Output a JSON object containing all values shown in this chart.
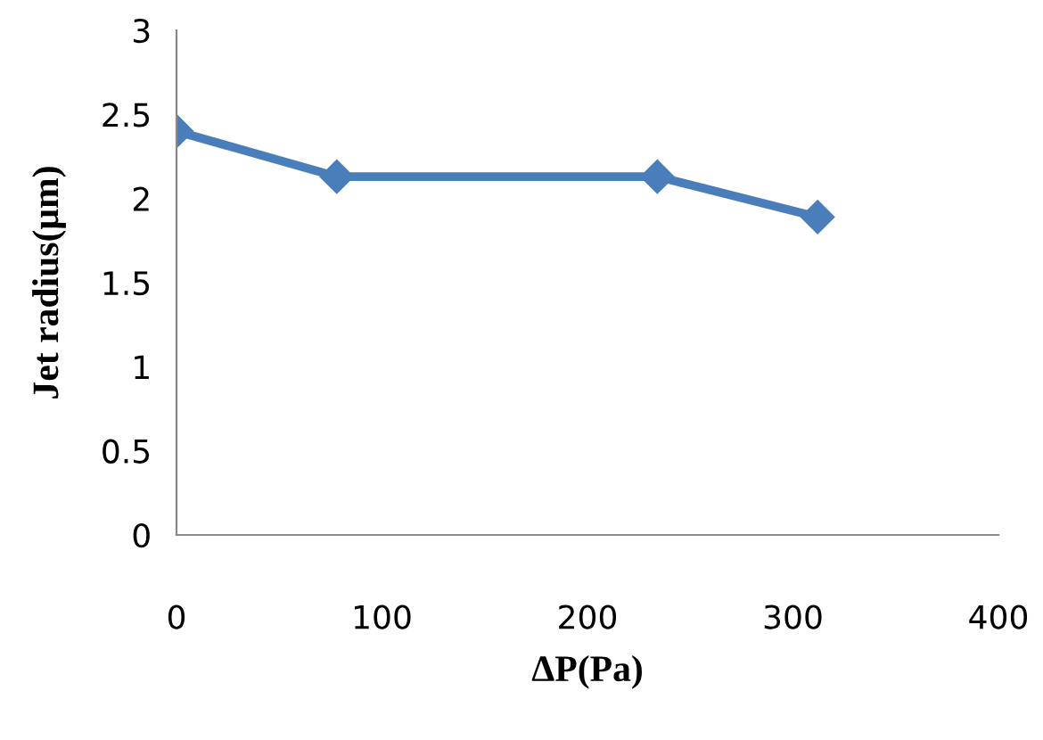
{
  "chart_data": {
    "type": "line",
    "xlabel": "ΔP(Pa)",
    "ylabel": "Jet radius(μm)",
    "x": [
      0,
      78,
      234,
      312
    ],
    "series": [
      {
        "color": "#4a7ebb",
        "values": [
          2.4,
          2.13,
          2.13,
          1.89
        ]
      }
    ],
    "xlim": [
      0,
      400
    ],
    "xticks": [
      0,
      100,
      200,
      300,
      400
    ],
    "ylim": [
      0,
      3
    ],
    "yticks": [
      0,
      0.5,
      1,
      1.5,
      2,
      2.5,
      3
    ],
    "grid": false,
    "marker": "diamond",
    "line_style": "solid",
    "legend": false
  }
}
